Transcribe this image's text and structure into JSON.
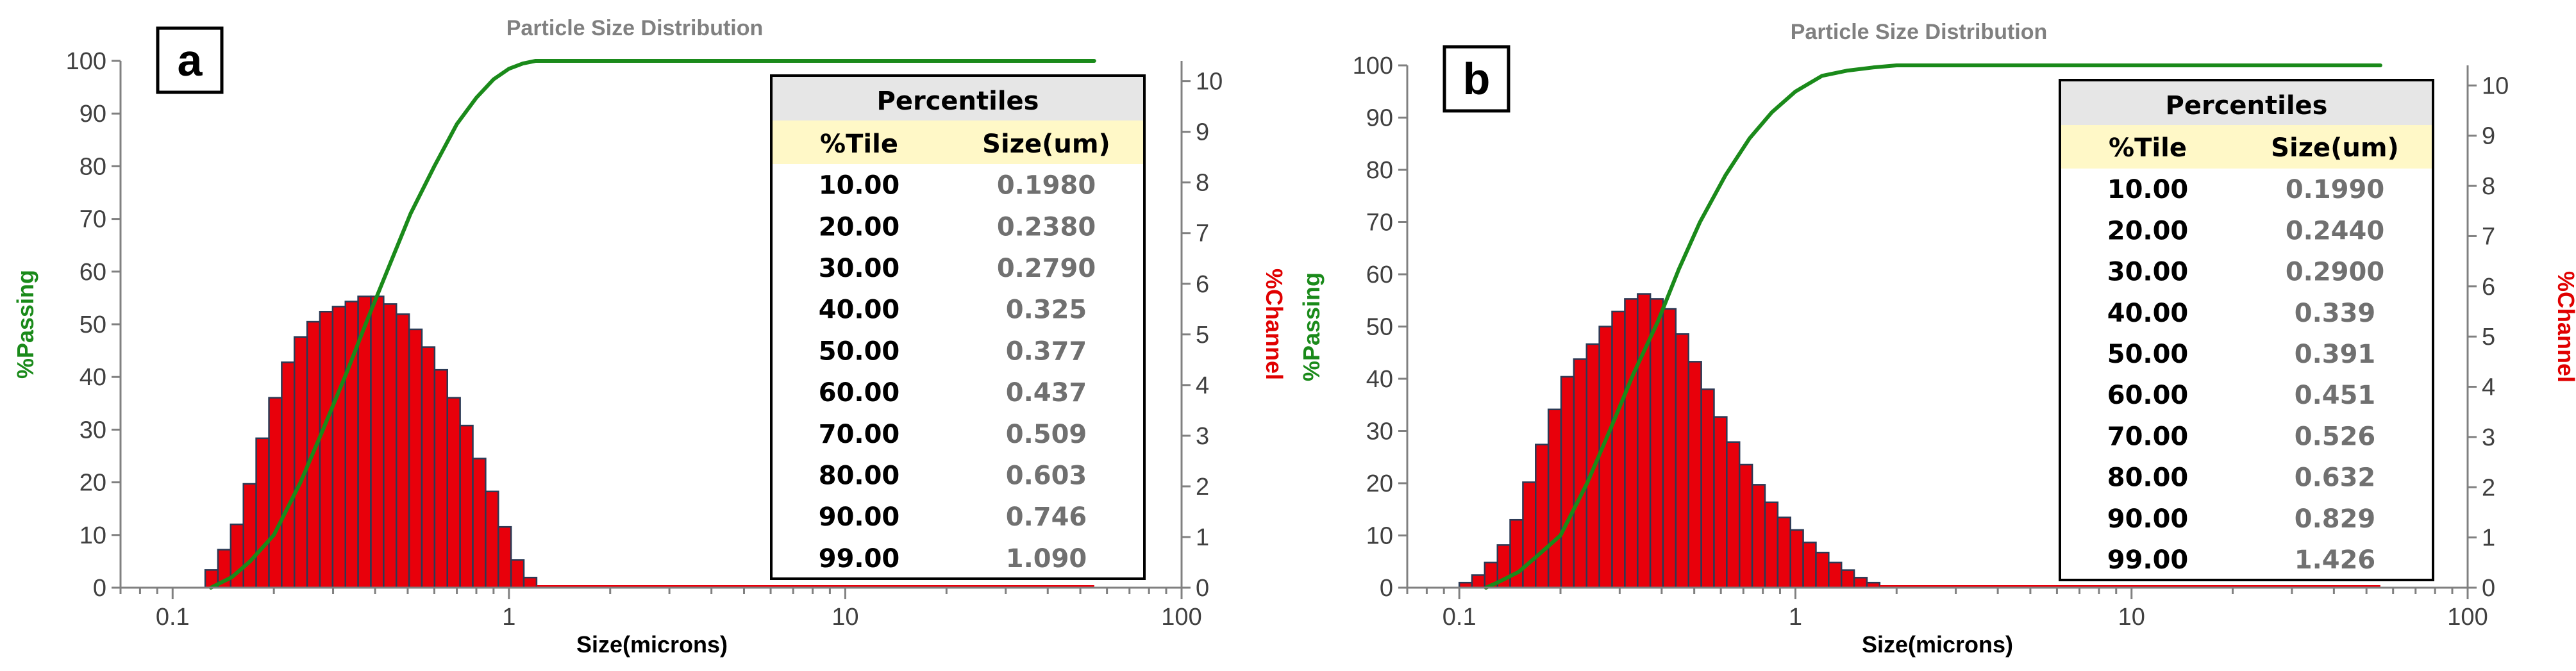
{
  "chart_data": [
    {
      "type": "bar",
      "panel_label": "a",
      "title": "Particle Size Distribution",
      "xlabel": "Size(microns)",
      "ylabel_left": "%Passing",
      "ylabel_right": "%Channel",
      "x_scale": "log",
      "xlim": [
        0.07,
        100
      ],
      "ylim_left": [
        0,
        100
      ],
      "ylim_right": [
        0,
        10.4
      ],
      "x_ticks": [
        "0.1",
        "1",
        "10",
        "100"
      ],
      "y_ticks_left": [
        "0",
        "10",
        "20",
        "30",
        "40",
        "50",
        "60",
        "70",
        "80",
        "90",
        "100"
      ],
      "y_ticks_right": [
        "0",
        "1",
        "2",
        "3",
        "4",
        "5",
        "6",
        "7",
        "8",
        "9",
        "10"
      ],
      "colors": {
        "bars": "#e8000b",
        "bar_edge": "#2b3a55",
        "passing": "#1a8a1a",
        "channel_label": "#e00000",
        "passing_label": "#1a8a1a"
      },
      "channel": {
        "bin_edges": [
          0.125,
          0.1364,
          0.1488,
          0.1624,
          0.1772,
          0.1934,
          0.211,
          0.2302,
          0.2512,
          0.2741,
          0.2991,
          0.3264,
          0.3561,
          0.3886,
          0.424,
          0.4627,
          0.5049,
          0.5509,
          0.6011,
          0.6559,
          0.7157,
          0.781,
          0.8522,
          0.9299,
          1.0147,
          1.1072,
          1.2082
        ],
        "values": [
          0.35,
          0.75,
          1.25,
          2.05,
          2.95,
          3.75,
          4.45,
          4.95,
          5.25,
          5.45,
          5.55,
          5.65,
          5.75,
          5.75,
          5.6,
          5.4,
          5.1,
          4.75,
          4.3,
          3.75,
          3.2,
          2.55,
          1.9,
          1.2,
          0.55,
          0.2
        ]
      },
      "passing": {
        "x": [
          0.13,
          0.15,
          0.17,
          0.2,
          0.24,
          0.28,
          0.33,
          0.38,
          0.44,
          0.51,
          0.6,
          0.7,
          0.8,
          0.9,
          1.0,
          1.1,
          1.2,
          1.35,
          1.5,
          3,
          10,
          20,
          55
        ],
        "y": [
          0,
          2,
          5,
          10,
          20,
          30,
          41,
          51,
          61,
          71,
          80,
          88,
          93,
          96.5,
          98.5,
          99.5,
          100,
          100,
          100,
          100,
          100,
          100,
          100
        ]
      },
      "percentiles": {
        "title": "Percentiles",
        "headers": [
          "%Tile",
          "Size(um)"
        ],
        "rows": [
          [
            "10.00",
            "0.1980"
          ],
          [
            "20.00",
            "0.2380"
          ],
          [
            "30.00",
            "0.2790"
          ],
          [
            "40.00",
            "0.325"
          ],
          [
            "50.00",
            "0.377"
          ],
          [
            "60.00",
            "0.437"
          ],
          [
            "70.00",
            "0.509"
          ],
          [
            "80.00",
            "0.603"
          ],
          [
            "90.00",
            "0.746"
          ],
          [
            "99.00",
            "1.090"
          ]
        ]
      }
    },
    {
      "type": "bar",
      "panel_label": "b",
      "title": "Particle Size Distribution",
      "xlabel": "Size(microns)",
      "ylabel_left": "%Passing",
      "ylabel_right": "%Channel",
      "x_scale": "log",
      "xlim": [
        0.07,
        100
      ],
      "ylim_left": [
        0,
        100
      ],
      "ylim_right": [
        0,
        10.4
      ],
      "x_ticks": [
        "0.1",
        "1",
        "10",
        "100"
      ],
      "y_ticks_left": [
        "0",
        "10",
        "20",
        "30",
        "40",
        "50",
        "60",
        "70",
        "80",
        "90",
        "100"
      ],
      "y_ticks_right": [
        "0",
        "1",
        "2",
        "3",
        "4",
        "5",
        "6",
        "7",
        "8",
        "9",
        "10"
      ],
      "colors": {
        "bars": "#e8000b",
        "bar_edge": "#2b3a55",
        "passing": "#1a8a1a",
        "channel_label": "#e00000",
        "passing_label": "#1a8a1a"
      },
      "channel": {
        "bin_edges": [
          0.1,
          0.1091,
          0.119,
          0.1299,
          0.1417,
          0.1546,
          0.1687,
          0.1841,
          0.2009,
          0.2192,
          0.2392,
          0.261,
          0.2848,
          0.3108,
          0.3392,
          0.3701,
          0.4038,
          0.4406,
          0.4808,
          0.5247,
          0.5725,
          0.6247,
          0.6817,
          0.7439,
          0.8117,
          0.8857,
          0.9665,
          1.0547,
          1.1509,
          1.2559,
          1.3704,
          1.4954,
          1.6318,
          1.7806
        ],
        "values": [
          0.1,
          0.25,
          0.5,
          0.85,
          1.35,
          2.1,
          2.85,
          3.55,
          4.2,
          4.55,
          4.85,
          5.2,
          5.5,
          5.75,
          5.85,
          5.75,
          5.55,
          5.05,
          4.5,
          3.95,
          3.4,
          2.9,
          2.45,
          2.05,
          1.7,
          1.4,
          1.15,
          0.9,
          0.7,
          0.5,
          0.35,
          0.2,
          0.1
        ]
      },
      "passing": {
        "x": [
          0.12,
          0.13,
          0.15,
          0.17,
          0.2,
          0.24,
          0.28,
          0.33,
          0.39,
          0.45,
          0.52,
          0.62,
          0.73,
          0.85,
          1.0,
          1.2,
          1.43,
          1.7,
          2.0,
          2.4,
          5,
          20,
          55
        ],
        "y": [
          0,
          1,
          3,
          6,
          10,
          20,
          30,
          41,
          51,
          61,
          70,
          79,
          86,
          91,
          95,
          98,
          99,
          99.6,
          100,
          100,
          100,
          100,
          100
        ]
      },
      "percentiles": {
        "title": "Percentiles",
        "headers": [
          "%Tile",
          "Size(um)"
        ],
        "rows": [
          [
            "10.00",
            "0.1990"
          ],
          [
            "20.00",
            "0.2440"
          ],
          [
            "30.00",
            "0.2900"
          ],
          [
            "40.00",
            "0.339"
          ],
          [
            "50.00",
            "0.391"
          ],
          [
            "60.00",
            "0.451"
          ],
          [
            "70.00",
            "0.526"
          ],
          [
            "80.00",
            "0.632"
          ],
          [
            "90.00",
            "0.829"
          ],
          [
            "99.00",
            "1.426"
          ]
        ]
      }
    }
  ]
}
